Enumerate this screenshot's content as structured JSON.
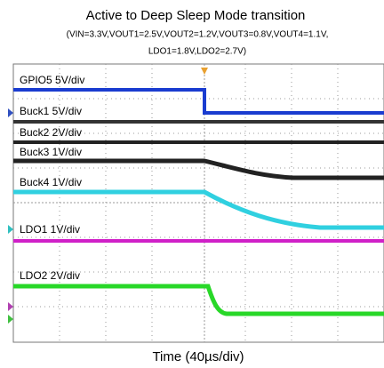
{
  "header": {
    "title": "Active to Deep Sleep Mode transition",
    "conditions": [
      "(VIN=3.3V,VOUT1=2.5V,VOUT2=1.2V,VOUT3=0.8V,VOUT4=1.1V,",
      "LDO1=1.8V,LDO2=2.7V)"
    ]
  },
  "channels": [
    {
      "label": "GPIO5  5V/div"
    },
    {
      "label": "Buck1  5V/div"
    },
    {
      "label": "Buck2  2V/div"
    },
    {
      "label": "Buck3  1V/div"
    },
    {
      "label": "Buck4  1V/div"
    },
    {
      "label": "LDO1  1V/div"
    },
    {
      "label": "LDO2  2V/div"
    }
  ],
  "x_axis": {
    "label": "Time (40µs/div)"
  }
}
